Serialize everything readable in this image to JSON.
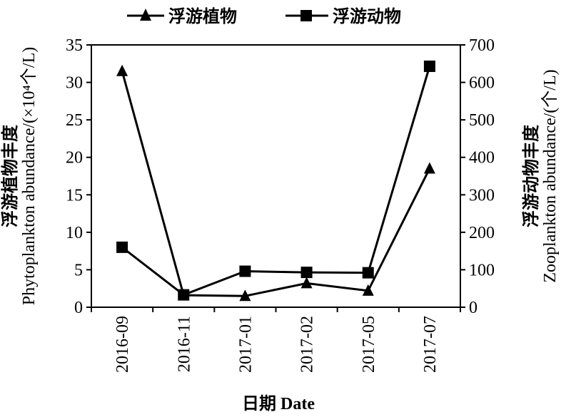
{
  "chart_data": {
    "type": "line",
    "categories": [
      "2016-09",
      "2016-11",
      "2017-01",
      "2017-02",
      "2017-05",
      "2017-07"
    ],
    "xlabel": "日期 Date",
    "ylabel_left": "浮游植物丰度",
    "ylabel_left_en": "Phytoplankton abundance/(×10⁴个/L)",
    "ylabel_right": "浮游动物丰度",
    "ylabel_right_en": "Zooplankton abundance/(个/L)",
    "ylim_left": [
      0,
      35
    ],
    "yticks_left": [
      0,
      5,
      10,
      15,
      20,
      25,
      30,
      35
    ],
    "ylim_right": [
      0,
      700
    ],
    "yticks_right": [
      0,
      100,
      200,
      300,
      400,
      500,
      600,
      700
    ],
    "grid": false,
    "legend_position": "top",
    "series": [
      {
        "name": "浮游植物",
        "axis": "left",
        "marker": "triangle",
        "values": [
          31.5,
          1.6,
          1.5,
          3.2,
          2.2,
          18.5
        ]
      },
      {
        "name": "浮游动物",
        "axis": "right",
        "marker": "square",
        "values": [
          160,
          33,
          96,
          93,
          92,
          643
        ]
      }
    ]
  }
}
